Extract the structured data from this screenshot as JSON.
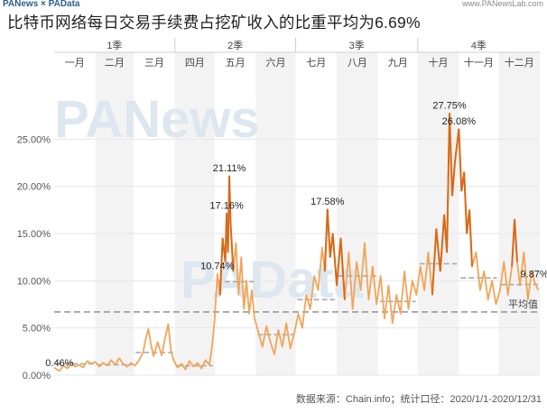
{
  "header": {
    "brand": "PANews × PAData",
    "site": "www.PANewsLab.com",
    "title": "比特币网络每日交易手续费占挖矿收入的比重平均为6.69%"
  },
  "footer": {
    "source": "数据来源：Chain.info；统计口径：2020/1/1-2020/12/31"
  },
  "watermark": {
    "top": "PANews",
    "bottom": "PAData"
  },
  "colors": {
    "line": "#f1a55a",
    "line_peak": "#d66a1a",
    "monthly_avg": "#a8a8a8",
    "overall_avg": "#9a9a9a",
    "grid": "#e6e6e6",
    "band": "#f3f3f3"
  },
  "chart_data": {
    "type": "line",
    "title": "比特币网络每日交易手续费占挖矿收入的比重平均为6.69%",
    "xlabel": "",
    "ylabel": "",
    "x_range": [
      "2020-01-01",
      "2020-12-31"
    ],
    "ylim": [
      0,
      30
    ],
    "y_ticks": [
      0,
      5,
      10,
      15,
      20,
      25
    ],
    "y_tick_labels": [
      "0.00%",
      "5.00%",
      "10.00%",
      "15.00%",
      "20.00%",
      "25.00%"
    ],
    "quarters": [
      "1季",
      "2季",
      "3季",
      "4季"
    ],
    "months": [
      "一月",
      "二月",
      "三月",
      "四月",
      "五月",
      "六月",
      "七月",
      "八月",
      "九月",
      "十月",
      "十一月",
      "十二月"
    ],
    "overall_average": {
      "label": "平均值",
      "value": 6.69
    },
    "monthly_averages": [
      1.2,
      1.1,
      2.4,
      1.0,
      9.9,
      4.3,
      8.0,
      10.5,
      7.8,
      11.8,
      10.3,
      9.6
    ],
    "annotations": [
      {
        "date": "2020-01-05",
        "value": 0.46,
        "text": "0.46%"
      },
      {
        "date": "2020-05-12",
        "value": 21.11,
        "text": "21.11%"
      },
      {
        "date": "2020-05-10",
        "value": 17.16,
        "text": "17.16%"
      },
      {
        "date": "2020-05-03",
        "value": 10.74,
        "text": "10.74%"
      },
      {
        "date": "2020-07-25",
        "value": 17.58,
        "text": "17.58%"
      },
      {
        "date": "2020-10-25",
        "value": 27.75,
        "text": "27.75%"
      },
      {
        "date": "2020-11-01",
        "value": 26.08,
        "text": "26.08%"
      },
      {
        "date": "2020-12-28",
        "value": 9.87,
        "text": "9.87%"
      }
    ],
    "series": [
      {
        "points": [
          [
            "2020-01-01",
            0.8
          ],
          [
            "2020-01-03",
            0.6
          ],
          [
            "2020-01-05",
            0.46
          ],
          [
            "2020-01-08",
            1.0
          ],
          [
            "2020-01-11",
            0.7
          ],
          [
            "2020-01-14",
            1.3
          ],
          [
            "2020-01-17",
            0.9
          ],
          [
            "2020-01-20",
            1.1
          ],
          [
            "2020-01-23",
            0.8
          ],
          [
            "2020-01-26",
            1.5
          ],
          [
            "2020-01-29",
            1.2
          ],
          [
            "2020-02-01",
            1.4
          ],
          [
            "2020-02-04",
            0.9
          ],
          [
            "2020-02-07",
            1.3
          ],
          [
            "2020-02-10",
            1.0
          ],
          [
            "2020-02-13",
            1.6
          ],
          [
            "2020-02-16",
            1.1
          ],
          [
            "2020-02-19",
            1.8
          ],
          [
            "2020-02-22",
            1.2
          ],
          [
            "2020-02-25",
            0.9
          ],
          [
            "2020-02-28",
            1.3
          ],
          [
            "2020-03-02",
            1.0
          ],
          [
            "2020-03-05",
            1.6
          ],
          [
            "2020-03-08",
            2.4
          ],
          [
            "2020-03-10",
            3.8
          ],
          [
            "2020-03-12",
            4.9
          ],
          [
            "2020-03-14",
            3.2
          ],
          [
            "2020-03-16",
            2.0
          ],
          [
            "2020-03-19",
            3.5
          ],
          [
            "2020-03-22",
            2.1
          ],
          [
            "2020-03-25",
            4.2
          ],
          [
            "2020-03-27",
            5.4
          ],
          [
            "2020-03-29",
            2.6
          ],
          [
            "2020-03-31",
            1.6
          ],
          [
            "2020-04-03",
            0.8
          ],
          [
            "2020-04-06",
            1.2
          ],
          [
            "2020-04-09",
            0.6
          ],
          [
            "2020-04-12",
            1.5
          ],
          [
            "2020-04-15",
            0.9
          ],
          [
            "2020-04-18",
            1.3
          ],
          [
            "2020-04-21",
            0.7
          ],
          [
            "2020-04-24",
            1.6
          ],
          [
            "2020-04-27",
            1.1
          ],
          [
            "2020-04-29",
            3.0
          ],
          [
            "2020-05-01",
            6.0
          ],
          [
            "2020-05-03",
            10.74
          ],
          [
            "2020-05-05",
            8.5
          ],
          [
            "2020-05-07",
            14.5
          ],
          [
            "2020-05-09",
            12.0
          ],
          [
            "2020-05-10",
            17.16
          ],
          [
            "2020-05-11",
            13.0
          ],
          [
            "2020-05-12",
            21.11
          ],
          [
            "2020-05-13",
            16.0
          ],
          [
            "2020-05-15",
            11.0
          ],
          [
            "2020-05-17",
            14.0
          ],
          [
            "2020-05-19",
            8.5
          ],
          [
            "2020-05-21",
            12.5
          ],
          [
            "2020-05-23",
            7.0
          ],
          [
            "2020-05-25",
            10.0
          ],
          [
            "2020-05-27",
            6.5
          ],
          [
            "2020-05-29",
            9.0
          ],
          [
            "2020-05-31",
            6.0
          ],
          [
            "2020-06-03",
            4.5
          ],
          [
            "2020-06-06",
            3.0
          ],
          [
            "2020-06-09",
            5.2
          ],
          [
            "2020-06-12",
            3.5
          ],
          [
            "2020-06-15",
            2.2
          ],
          [
            "2020-06-18",
            4.8
          ],
          [
            "2020-06-21",
            3.0
          ],
          [
            "2020-06-24",
            5.5
          ],
          [
            "2020-06-27",
            2.8
          ],
          [
            "2020-06-30",
            4.5
          ],
          [
            "2020-07-03",
            6.5
          ],
          [
            "2020-07-06",
            5.0
          ],
          [
            "2020-07-09",
            8.5
          ],
          [
            "2020-07-12",
            7.0
          ],
          [
            "2020-07-15",
            10.5
          ],
          [
            "2020-07-18",
            9.0
          ],
          [
            "2020-07-21",
            13.5
          ],
          [
            "2020-07-23",
            11.0
          ],
          [
            "2020-07-25",
            17.58
          ],
          [
            "2020-07-27",
            12.5
          ],
          [
            "2020-07-29",
            15.0
          ],
          [
            "2020-08-01",
            9.5
          ],
          [
            "2020-08-04",
            14.5
          ],
          [
            "2020-08-07",
            8.0
          ],
          [
            "2020-08-10",
            13.0
          ],
          [
            "2020-08-13",
            7.0
          ],
          [
            "2020-08-16",
            12.0
          ],
          [
            "2020-08-19",
            9.0
          ],
          [
            "2020-08-22",
            14.0
          ],
          [
            "2020-08-25",
            8.0
          ],
          [
            "2020-08-28",
            11.5
          ],
          [
            "2020-08-31",
            7.5
          ],
          [
            "2020-09-03",
            10.5
          ],
          [
            "2020-09-06",
            6.0
          ],
          [
            "2020-09-09",
            9.5
          ],
          [
            "2020-09-12",
            5.5
          ],
          [
            "2020-09-15",
            8.5
          ],
          [
            "2020-09-18",
            6.5
          ],
          [
            "2020-09-21",
            11.0
          ],
          [
            "2020-09-24",
            7.0
          ],
          [
            "2020-09-27",
            10.0
          ],
          [
            "2020-09-30",
            8.5
          ],
          [
            "2020-10-03",
            11.5
          ],
          [
            "2020-10-06",
            9.0
          ],
          [
            "2020-10-09",
            13.0
          ],
          [
            "2020-10-12",
            8.5
          ],
          [
            "2020-10-15",
            15.5
          ],
          [
            "2020-10-18",
            11.0
          ],
          [
            "2020-10-21",
            17.0
          ],
          [
            "2020-10-23",
            13.0
          ],
          [
            "2020-10-25",
            27.75
          ],
          [
            "2020-10-27",
            19.0
          ],
          [
            "2020-10-29",
            22.5
          ],
          [
            "2020-11-01",
            26.08
          ],
          [
            "2020-11-03",
            19.5
          ],
          [
            "2020-11-05",
            21.5
          ],
          [
            "2020-11-07",
            15.0
          ],
          [
            "2020-11-09",
            17.5
          ],
          [
            "2020-11-11",
            11.5
          ],
          [
            "2020-11-14",
            13.0
          ],
          [
            "2020-11-17",
            9.0
          ],
          [
            "2020-11-20",
            11.0
          ],
          [
            "2020-11-23",
            8.0
          ],
          [
            "2020-11-26",
            10.0
          ],
          [
            "2020-11-29",
            7.5
          ],
          [
            "2020-12-02",
            9.0
          ],
          [
            "2020-12-05",
            12.0
          ],
          [
            "2020-12-08",
            8.5
          ],
          [
            "2020-12-11",
            11.5
          ],
          [
            "2020-12-13",
            16.5
          ],
          [
            "2020-12-15",
            12.0
          ],
          [
            "2020-12-17",
            9.5
          ],
          [
            "2020-12-20",
            13.0
          ],
          [
            "2020-12-23",
            8.0
          ],
          [
            "2020-12-26",
            11.0
          ],
          [
            "2020-12-28",
            9.87
          ],
          [
            "2020-12-31",
            9.0
          ]
        ]
      }
    ]
  }
}
